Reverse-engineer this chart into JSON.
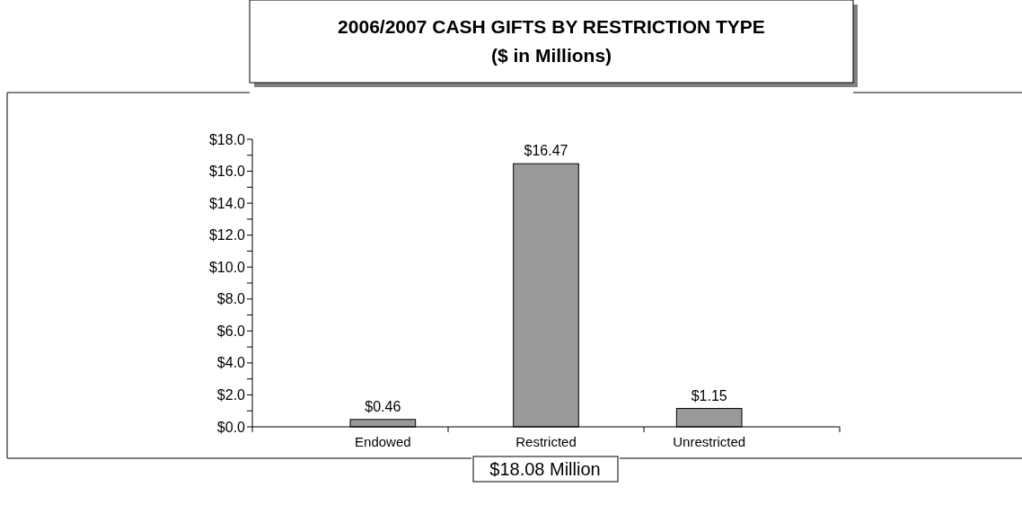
{
  "chart_data": {
    "type": "bar",
    "title": "2006/2007 CASH GIFTS BY RESTRICTION TYPE",
    "subtitle": "($ in Millions)",
    "categories": [
      "Endowed",
      "Restricted",
      "Unrestricted"
    ],
    "values": [
      0.46,
      16.47,
      1.15
    ],
    "value_labels": [
      "$0.46",
      "$16.47",
      "$1.15"
    ],
    "color": "#9a9a9a",
    "ylim": [
      0,
      18
    ],
    "yticks": [
      {
        "value": 0,
        "label": "$0.0"
      },
      {
        "value": 1,
        "label": null
      },
      {
        "value": 2,
        "label": "$2.0"
      },
      {
        "value": 3,
        "label": null
      },
      {
        "value": 4,
        "label": "$4.0"
      },
      {
        "value": 5,
        "label": null
      },
      {
        "value": 6,
        "label": "$6.0"
      },
      {
        "value": 7,
        "label": null
      },
      {
        "value": 8,
        "label": "$8.0"
      },
      {
        "value": 9,
        "label": null
      },
      {
        "value": 10,
        "label": "$10.0"
      },
      {
        "value": 11,
        "label": null
      },
      {
        "value": 12,
        "label": "$12.0"
      },
      {
        "value": 13,
        "label": null
      },
      {
        "value": 14,
        "label": "$14.0"
      },
      {
        "value": 15,
        "label": null
      },
      {
        "value": 16,
        "label": "$16.0"
      },
      {
        "value": 17,
        "label": null
      },
      {
        "value": 18,
        "label": "$18.0"
      }
    ],
    "annotations": [
      "$18.08 Million"
    ],
    "grid": false
  }
}
